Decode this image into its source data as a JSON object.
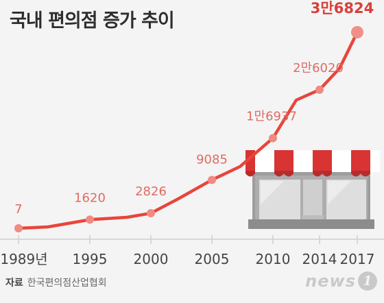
{
  "title": "국내 편의점 증가 추이",
  "source_label": "자료",
  "source_text": "한국편의점산업협회",
  "logo": {
    "text": "news",
    "badge": "1"
  },
  "colors": {
    "line": "#e8453c",
    "label": "#e06b62",
    "label_last": "#d8403a",
    "axis_text": "#444444"
  },
  "chart_data": {
    "type": "line",
    "x_labels": [
      "1989년",
      "1995",
      "2000",
      "2005",
      "2010",
      "2014",
      "2017"
    ],
    "points": [
      {
        "x": "1989년",
        "value": 7,
        "label": "7"
      },
      {
        "x": "1995",
        "value": 1620,
        "label": "1620"
      },
      {
        "x": "2000",
        "value": 2826,
        "label": "2826"
      },
      {
        "x": "2005",
        "value": 9085,
        "label": "9085"
      },
      {
        "x": "2010",
        "value": 16937,
        "label": "1만6937"
      },
      {
        "x": "2014",
        "value": 26020,
        "label": "2만6020"
      },
      {
        "x": "2017",
        "value": 36824,
        "label": "3만6824"
      }
    ],
    "grid": false
  }
}
